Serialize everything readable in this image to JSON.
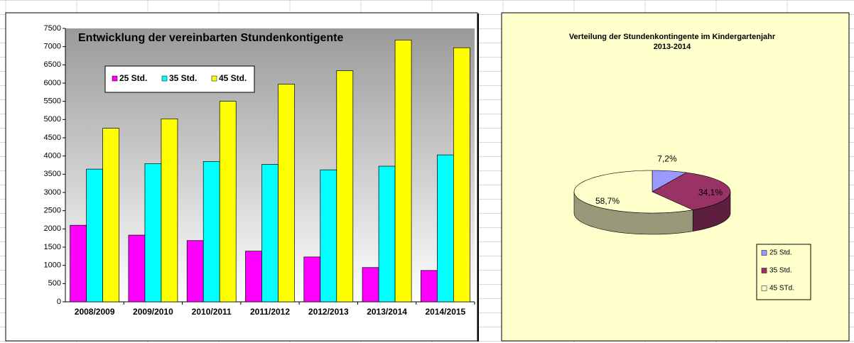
{
  "chart_data": [
    {
      "type": "bar",
      "title": "Entwicklung der vereinbarten Stundenkontigente",
      "categories": [
        "2008/2009",
        "2009/2010",
        "2010/2011",
        "2011/2012",
        "2012/2013",
        "2013/2014",
        "2014/2015"
      ],
      "series": [
        {
          "name": "25 Std.",
          "color": "#FF00FF",
          "values": [
            2100,
            1830,
            1680,
            1390,
            1230,
            940,
            860
          ]
        },
        {
          "name": "35 Std.",
          "color": "#00FFFF",
          "values": [
            3640,
            3790,
            3850,
            3770,
            3620,
            3720,
            4030
          ]
        },
        {
          "name": "45 Std.",
          "color": "#FFFF00",
          "values": [
            4760,
            5020,
            5500,
            5970,
            6340,
            7180,
            6970
          ]
        }
      ],
      "ylim": [
        0,
        7500
      ],
      "yticks": [
        0,
        500,
        1000,
        1500,
        2000,
        2500,
        3000,
        3500,
        4000,
        4500,
        5000,
        5500,
        6000,
        6500,
        7000,
        7500
      ],
      "grid": false,
      "legend": "top-left"
    },
    {
      "type": "pie",
      "title": [
        "Verteilung der Stundenkontingente im Kindergartenjahr",
        "2013-2014"
      ],
      "categories": [
        "25 Std.",
        "35 Std.",
        "45 STd."
      ],
      "values": [
        7.2,
        34.1,
        58.7
      ],
      "value_labels": [
        "7,2%",
        "34,1%",
        "58,7%"
      ],
      "colors": [
        "#9999FF",
        "#993366",
        "#FFFFCC"
      ],
      "legend": "right"
    }
  ]
}
